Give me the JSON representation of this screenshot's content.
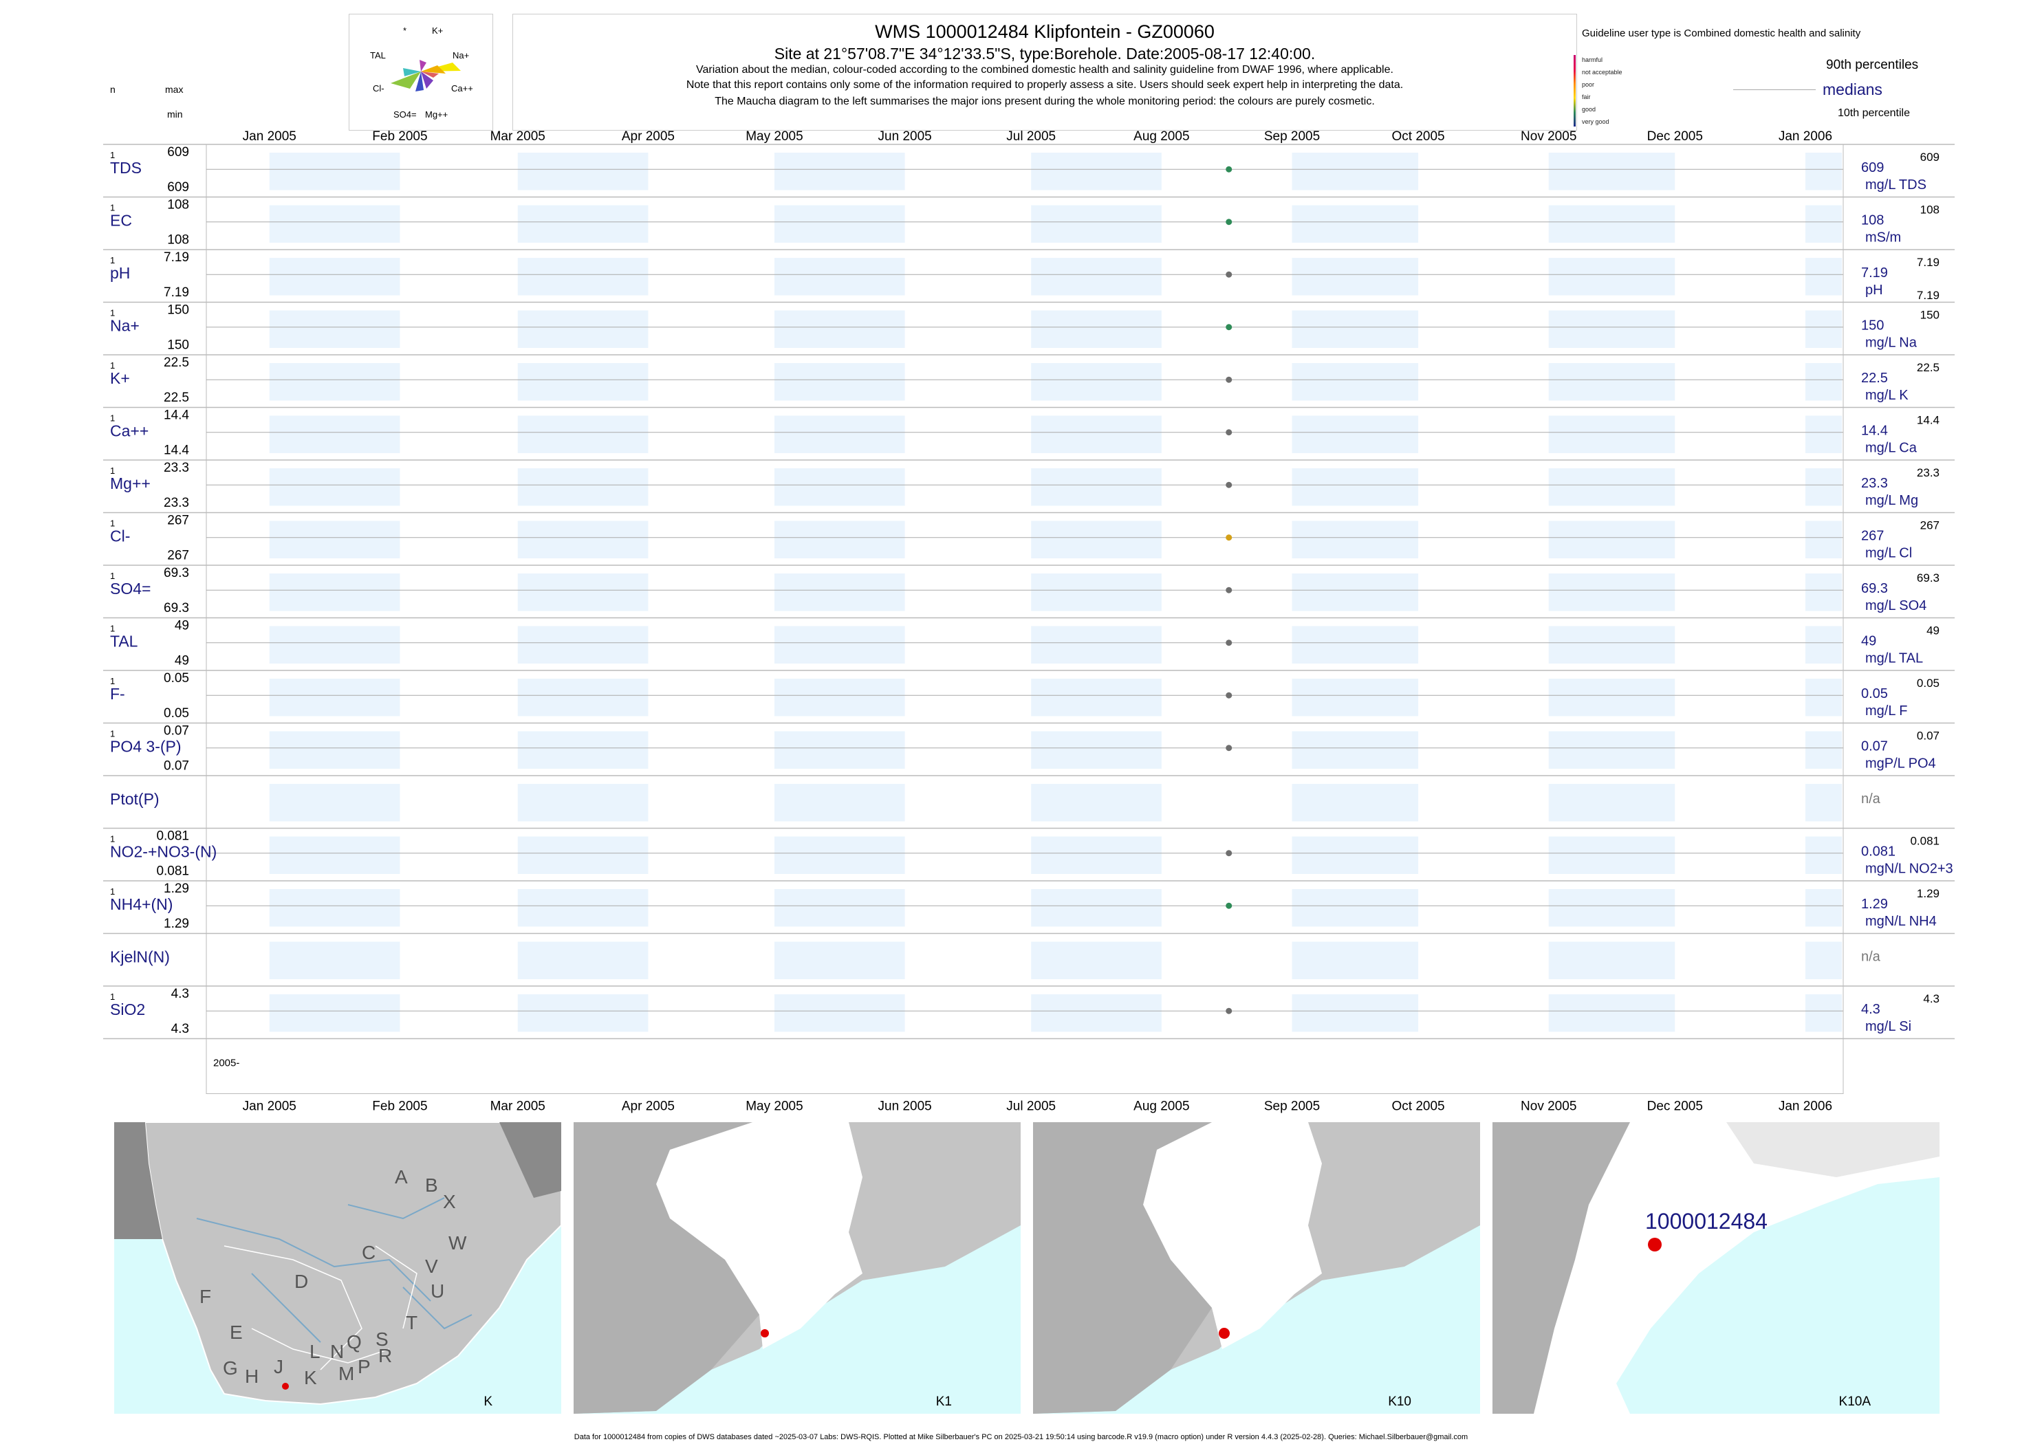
{
  "header": {
    "title": "WMS 1000012484  Klipfontein - GZ00060",
    "site": "Site at 21°57'08.7\"E 34°12'33.5\"S, type:Borehole. Date:2005-08-17 12:40:00.",
    "notes": [
      "Variation about the median,  colour-coded according to the combined domestic health and salinity guideline from DWAF 1996, where applicable.",
      "Note that this report contains only some of the information required to properly assess a site. Users should seek expert help in interpreting the data.",
      "The Maucha diagram to the left summarises the major ions present during the whole monitoring period: the colours are purely cosmetic."
    ],
    "guideline": "Guideline user type is Combined domestic health and salinity",
    "col_n": "n",
    "col_max": "max",
    "col_min": "min"
  },
  "maucha": {
    "labels": [
      "*",
      "K+",
      "TAL",
      "Na+",
      "Cl-",
      "Ca++",
      "SO4=",
      "Mg++"
    ]
  },
  "legend": {
    "scale": [
      "harmful",
      "not acceptable",
      "poor",
      "fair",
      "good",
      "very good"
    ],
    "scale_colors": [
      "#c8006e",
      "#e6004c",
      "#ff8c00",
      "#ffd700",
      "#2e8b57",
      "#1e2a8c"
    ],
    "p90": "90th percentiles",
    "medians": "medians",
    "p10": "10th percentile"
  },
  "chart_data": {
    "type": "scatter",
    "x_ticks": [
      "Jan 2005",
      "Feb 2005",
      "Mar 2005",
      "Apr 2005",
      "May 2005",
      "Jun 2005",
      "Jul 2005",
      "Aug 2005",
      "Sep 2005",
      "Oct 2005",
      "Nov 2005",
      "Dec 2005",
      "Jan 2006"
    ],
    "sample_date": "2005-08-17",
    "year_label": "2005-",
    "rows": [
      {
        "name": "TDS",
        "n": "1",
        "max": "609",
        "min": "609",
        "median": "609",
        "p90": "609",
        "p10": "",
        "unit": "mg/L TDS",
        "color": "#2e8b57"
      },
      {
        "name": "EC",
        "n": "1",
        "max": "108",
        "min": "108",
        "median": "108",
        "p90": "108",
        "p10": "",
        "unit": "mS/m",
        "color": "#2e8b57"
      },
      {
        "name": "pH",
        "n": "1",
        "max": "7.19",
        "min": "7.19",
        "median": "7.19",
        "p90": "7.19",
        "p10": "7.19",
        "unit": "pH",
        "color": "#6e6e6e"
      },
      {
        "name": "Na+",
        "n": "1",
        "max": "150",
        "min": "150",
        "median": "150",
        "p90": "150",
        "p10": "",
        "unit": "mg/L Na",
        "color": "#2e8b57"
      },
      {
        "name": "K+",
        "n": "1",
        "max": "22.5",
        "min": "22.5",
        "median": "22.5",
        "p90": "22.5",
        "p10": "",
        "unit": "mg/L K",
        "color": "#6e6e6e"
      },
      {
        "name": "Ca++",
        "n": "1",
        "max": "14.4",
        "min": "14.4",
        "median": "14.4",
        "p90": "14.4",
        "p10": "",
        "unit": "mg/L Ca",
        "color": "#6e6e6e"
      },
      {
        "name": "Mg++",
        "n": "1",
        "max": "23.3",
        "min": "23.3",
        "median": "23.3",
        "p90": "23.3",
        "p10": "",
        "unit": "mg/L Mg",
        "color": "#6e6e6e"
      },
      {
        "name": "Cl-",
        "n": "1",
        "max": "267",
        "min": "267",
        "median": "267",
        "p90": "267",
        "p10": "",
        "unit": "mg/L Cl",
        "color": "#d4a017"
      },
      {
        "name": "SO4=",
        "n": "1",
        "max": "69.3",
        "min": "69.3",
        "median": "69.3",
        "p90": "69.3",
        "p10": "",
        "unit": "mg/L SO4",
        "color": "#6e6e6e"
      },
      {
        "name": "TAL",
        "n": "1",
        "max": "49",
        "min": "49",
        "median": "49",
        "p90": "49",
        "p10": "",
        "unit": "mg/L TAL",
        "color": "#6e6e6e"
      },
      {
        "name": "F-",
        "n": "1",
        "max": "0.05",
        "min": "0.05",
        "median": "0.05",
        "p90": "0.05",
        "p10": "",
        "unit": "mg/L F",
        "color": "#6e6e6e"
      },
      {
        "name": "PO4 3-(P)",
        "n": "1",
        "max": "0.07",
        "min": "0.07",
        "median": "0.07",
        "p90": "0.07",
        "p10": "",
        "unit": "mgP/L PO4",
        "color": "#6e6e6e"
      },
      {
        "name": "Ptot(P)",
        "n": "",
        "max": "",
        "min": "",
        "median": "n/a",
        "p90": "",
        "p10": "",
        "unit": "",
        "color": ""
      },
      {
        "name": "NO2-+NO3-(N)",
        "n": "1",
        "max": "0.081",
        "min": "0.081",
        "median": "0.081",
        "p90": "0.081",
        "p10": "",
        "unit": "mgN/L NO2+3",
        "color": "#6e6e6e"
      },
      {
        "name": "NH4+(N)",
        "n": "1",
        "max": "1.29",
        "min": "1.29",
        "median": "1.29",
        "p90": "1.29",
        "p10": "",
        "unit": "mgN/L NH4",
        "color": "#2e8b57"
      },
      {
        "name": "KjelN(N)",
        "n": "",
        "max": "",
        "min": "",
        "median": "n/a",
        "p90": "",
        "p10": "",
        "unit": "",
        "color": ""
      },
      {
        "name": "SiO2",
        "n": "1",
        "max": "4.3",
        "min": "4.3",
        "median": "4.3",
        "p90": "4.3",
        "p10": "",
        "unit": "mg/L Si",
        "color": "#6e6e6e"
      }
    ]
  },
  "maps": {
    "regions": [
      "A",
      "B",
      "X",
      "W",
      "C",
      "V",
      "D",
      "U",
      "F",
      "T",
      "E",
      "Q",
      "S",
      "L",
      "N",
      "R",
      "G",
      "H",
      "J",
      "K",
      "M",
      "P"
    ],
    "panels": [
      "K",
      "K1",
      "K10",
      "K10A"
    ],
    "site_label": "1000012484"
  },
  "footer": "Data for 1000012484 from copies of DWS databases dated ~2025-03-07 Labs: DWS-RQIS. Plotted at Mike Silberbauer's PC on 2025-03-21 19:50:14 using barcode.R v19.9 (macro option) under R version 4.4.3 (2025-02-28). Queries: Michael.Silberbauer@gmail.com"
}
